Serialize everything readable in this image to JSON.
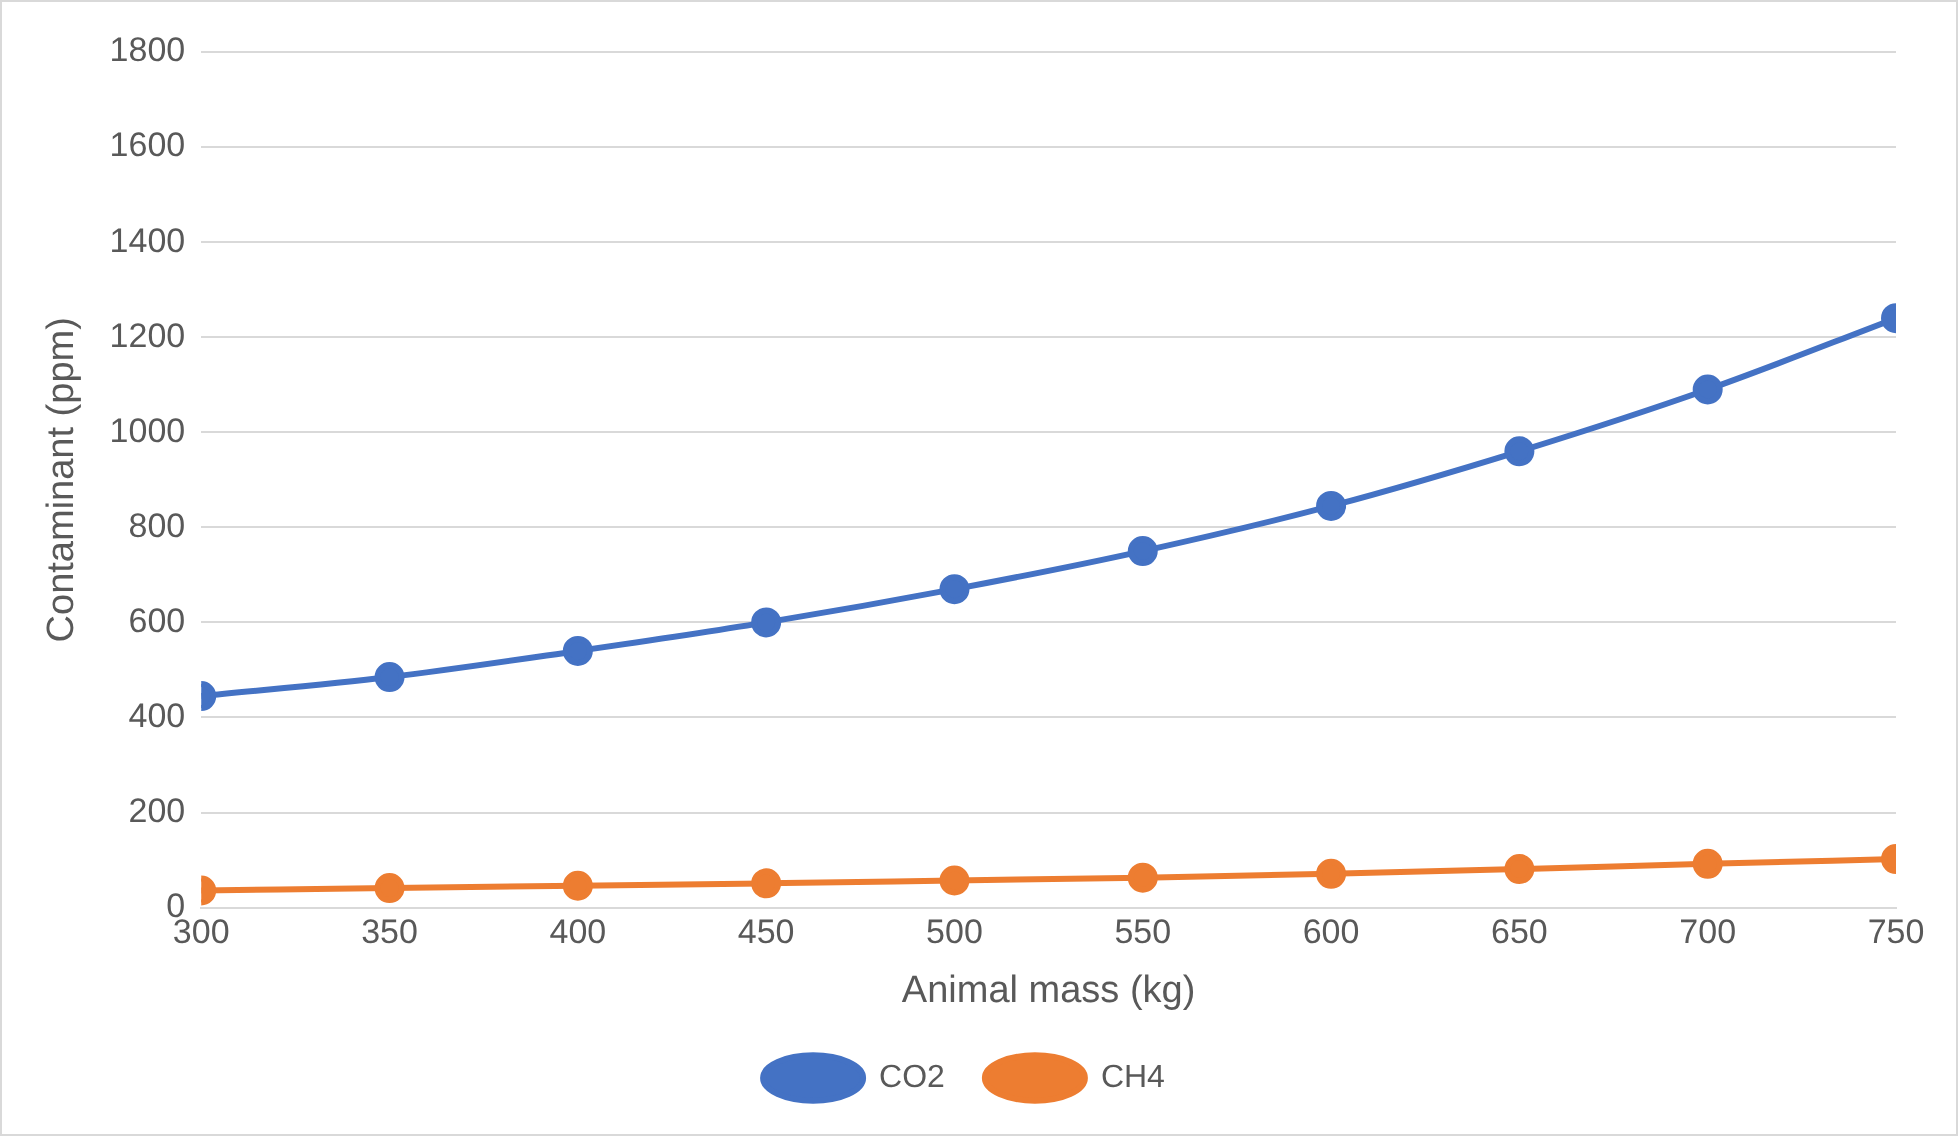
{
  "chart_data": {
    "type": "line",
    "xlabel": "Animal mass (kg)",
    "ylabel": "Contaminant (ppm)",
    "x": [
      300,
      350,
      400,
      450,
      500,
      550,
      600,
      650,
      700,
      750
    ],
    "series": [
      {
        "name": "CO2",
        "color": "#4472c4",
        "values": [
          445,
          485,
          540,
          600,
          670,
          750,
          845,
          960,
          1090,
          1240
        ]
      },
      {
        "name": "CH4",
        "color": "#ed7d31",
        "values": [
          36,
          41,
          46,
          51,
          57,
          63,
          71,
          81,
          92,
          102
        ]
      }
    ],
    "xlim": [
      300,
      750
    ],
    "xticks": [
      300,
      350,
      400,
      450,
      500,
      550,
      600,
      650,
      700,
      750
    ],
    "ylim": [
      0,
      1800
    ],
    "yticks": [
      0,
      200,
      400,
      600,
      800,
      1000,
      1200,
      1400,
      1600,
      1800
    ],
    "grid": "y",
    "legend": "bottom",
    "marker": "circle",
    "line_style": "solid"
  }
}
